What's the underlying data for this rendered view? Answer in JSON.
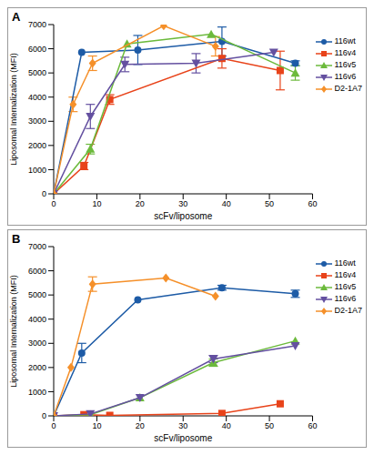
{
  "chart_data": [
    {
      "type": "line",
      "title": "A",
      "x_label": "scFv/liposome",
      "y_label": "Liposomal Internalization (MFI)",
      "xlim": [
        0,
        60
      ],
      "xticks": [
        0,
        10,
        20,
        30,
        40,
        50,
        60
      ],
      "ylim": [
        0,
        7000
      ],
      "yticks": [
        0,
        1000,
        2000,
        3000,
        4000,
        5000,
        6000,
        7000
      ],
      "grid": false,
      "legend": "right",
      "series": [
        {
          "name": "116wt",
          "color": "#1d5ba6",
          "marker": "circle",
          "x": [
            0,
            6.5,
            19.5,
            39,
            56
          ],
          "values": [
            0,
            5850,
            5950,
            6300,
            5400
          ],
          "errors": [
            null,
            null,
            600,
            600,
            100
          ]
        },
        {
          "name": "116v4",
          "color": "#e8431a",
          "marker": "square",
          "x": [
            0,
            7,
            13,
            39,
            52.5
          ],
          "values": [
            0,
            1150,
            3900,
            5600,
            5100
          ],
          "errors": [
            null,
            150,
            200,
            400,
            800
          ]
        },
        {
          "name": "116v5",
          "color": "#6cba3c",
          "marker": "triangle-up",
          "x": [
            0,
            8.5,
            17,
            36.5,
            56
          ],
          "values": [
            0,
            1850,
            6200,
            6600,
            5000
          ],
          "errors": [
            null,
            200,
            null,
            null,
            300
          ]
        },
        {
          "name": "116v6",
          "color": "#6450a0",
          "marker": "triangle-down",
          "x": [
            0,
            8.5,
            16.5,
            33,
            51
          ],
          "values": [
            0,
            3200,
            5350,
            5400,
            5850
          ],
          "errors": [
            null,
            500,
            300,
            400,
            null
          ]
        },
        {
          "name": "D2-1A7",
          "color": "#f5902a",
          "marker": "diamond",
          "x": [
            0,
            4.5,
            9,
            25.5,
            37.5
          ],
          "values": [
            0,
            3700,
            5400,
            6950,
            6100
          ],
          "errors": [
            null,
            300,
            300,
            null,
            400
          ]
        }
      ]
    },
    {
      "type": "line",
      "title": "B",
      "x_label": "scFv/liposome",
      "y_label": "Liposomal Internalization (MFI)",
      "xlim": [
        0,
        60
      ],
      "xticks": [
        0,
        10,
        20,
        30,
        40,
        50,
        60
      ],
      "ylim": [
        0,
        7000
      ],
      "yticks": [
        0,
        1000,
        2000,
        3000,
        4000,
        5000,
        6000,
        7000
      ],
      "grid": false,
      "legend": "right",
      "series": [
        {
          "name": "116wt",
          "color": "#1d5ba6",
          "marker": "circle",
          "x": [
            0,
            6.5,
            19.5,
            39,
            56
          ],
          "values": [
            0,
            2600,
            4800,
            5300,
            5050
          ],
          "errors": [
            null,
            400,
            null,
            100,
            150
          ]
        },
        {
          "name": "116v4",
          "color": "#e8431a",
          "marker": "square",
          "x": [
            0,
            7,
            13,
            39,
            52.5
          ],
          "values": [
            0,
            50,
            20,
            100,
            500
          ],
          "errors": [
            null,
            null,
            null,
            null,
            null
          ]
        },
        {
          "name": "116v5",
          "color": "#6cba3c",
          "marker": "triangle-up",
          "x": [
            0,
            8.5,
            20,
            37,
            56
          ],
          "values": [
            0,
            50,
            750,
            2200,
            3100
          ],
          "errors": [
            null,
            null,
            null,
            150,
            null
          ]
        },
        {
          "name": "116v6",
          "color": "#6450a0",
          "marker": "triangle-down",
          "x": [
            0,
            8.5,
            20,
            37,
            56
          ],
          "values": [
            0,
            80,
            750,
            2350,
            2900
          ],
          "errors": [
            null,
            null,
            null,
            150,
            null
          ]
        },
        {
          "name": "D2-1A7",
          "color": "#f5902a",
          "marker": "diamond",
          "x": [
            0,
            4,
            9,
            26,
            37.5
          ],
          "values": [
            0,
            2000,
            5450,
            5700,
            4950
          ],
          "errors": [
            null,
            null,
            300,
            null,
            null
          ]
        }
      ]
    }
  ]
}
